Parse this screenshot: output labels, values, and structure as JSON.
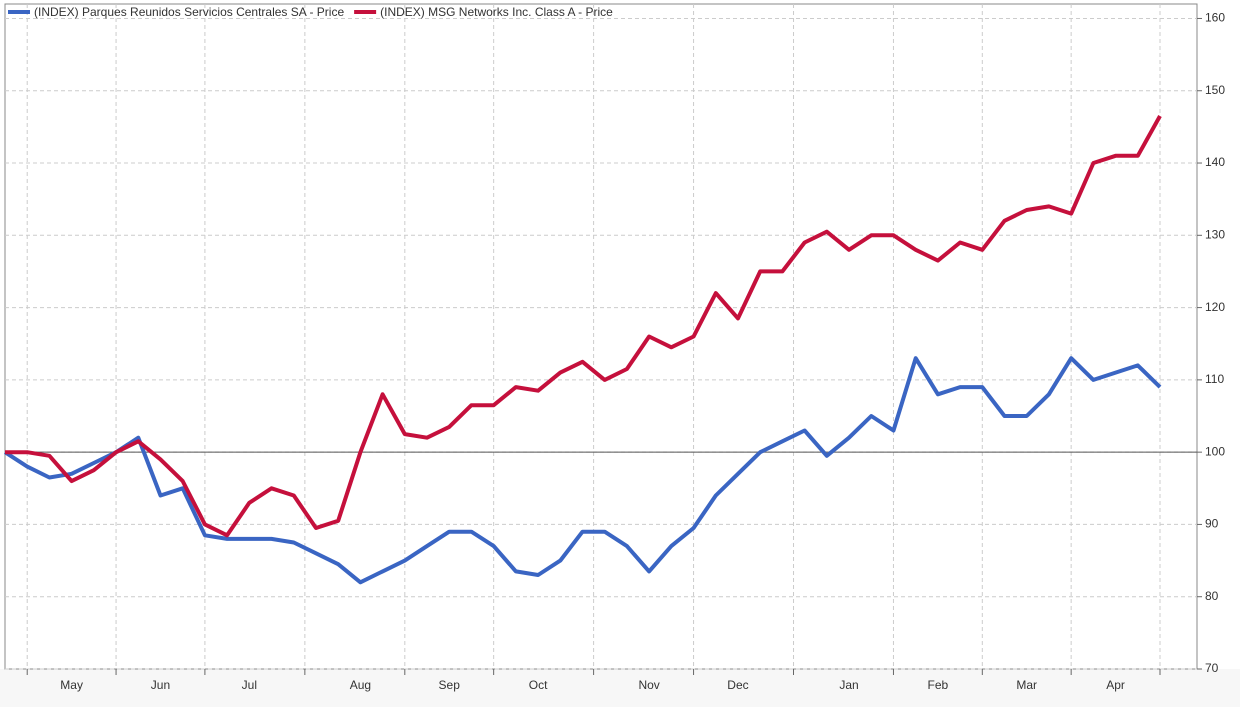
{
  "chart_data": {
    "type": "line",
    "categories": [
      null,
      null,
      null,
      "May",
      null,
      null,
      null,
      "Jun",
      null,
      null,
      null,
      "Jul",
      null,
      null,
      null,
      null,
      "Aug",
      null,
      null,
      null,
      "Sep",
      null,
      null,
      null,
      "Oct",
      null,
      null,
      null,
      null,
      "Nov",
      null,
      null,
      null,
      "Dec",
      null,
      null,
      null,
      null,
      "Jan",
      null,
      null,
      null,
      "Feb",
      null,
      null,
      null,
      "Mar",
      null,
      null,
      null,
      "Apr",
      null,
      null
    ],
    "series": [
      {
        "name": "(INDEX) Parques Reunidos Servicios Centrales SA - Price",
        "color": "#3a65c3",
        "values": [
          100,
          98,
          96.5,
          97,
          98.5,
          100,
          102,
          94,
          95,
          88.5,
          88,
          88,
          88,
          87.5,
          86,
          84.5,
          82,
          83.5,
          85,
          87,
          89,
          89,
          87,
          83.5,
          83,
          85,
          89,
          89,
          87,
          83.5,
          87,
          89.5,
          94,
          97,
          100,
          101.5,
          103,
          99.5,
          102,
          105,
          103,
          113,
          108,
          109,
          109,
          105,
          105,
          108,
          113,
          110,
          111,
          112,
          109
        ]
      },
      {
        "name": "(INDEX) MSG Networks Inc. Class A - Price",
        "color": "#c5103c",
        "values": [
          100,
          100,
          99.5,
          96,
          97.5,
          100,
          101.5,
          99,
          96,
          90,
          88.5,
          93,
          95,
          94,
          89.5,
          90.5,
          100,
          108,
          102.5,
          102,
          103.5,
          106.5,
          106.5,
          109,
          108.5,
          111,
          112.5,
          110,
          111.5,
          116,
          114.5,
          116,
          122,
          118.5,
          125,
          125,
          129,
          130.5,
          128,
          130,
          130,
          128,
          126.5,
          129,
          128,
          132,
          133.5,
          134,
          133,
          140,
          141,
          141,
          146.5
        ]
      }
    ],
    "ylim": [
      70,
      162
    ],
    "yticks": [
      70,
      80,
      90,
      100,
      110,
      120,
      130,
      140,
      150,
      160
    ],
    "grid": true,
    "reference_line": 100,
    "legend": "top-left"
  }
}
